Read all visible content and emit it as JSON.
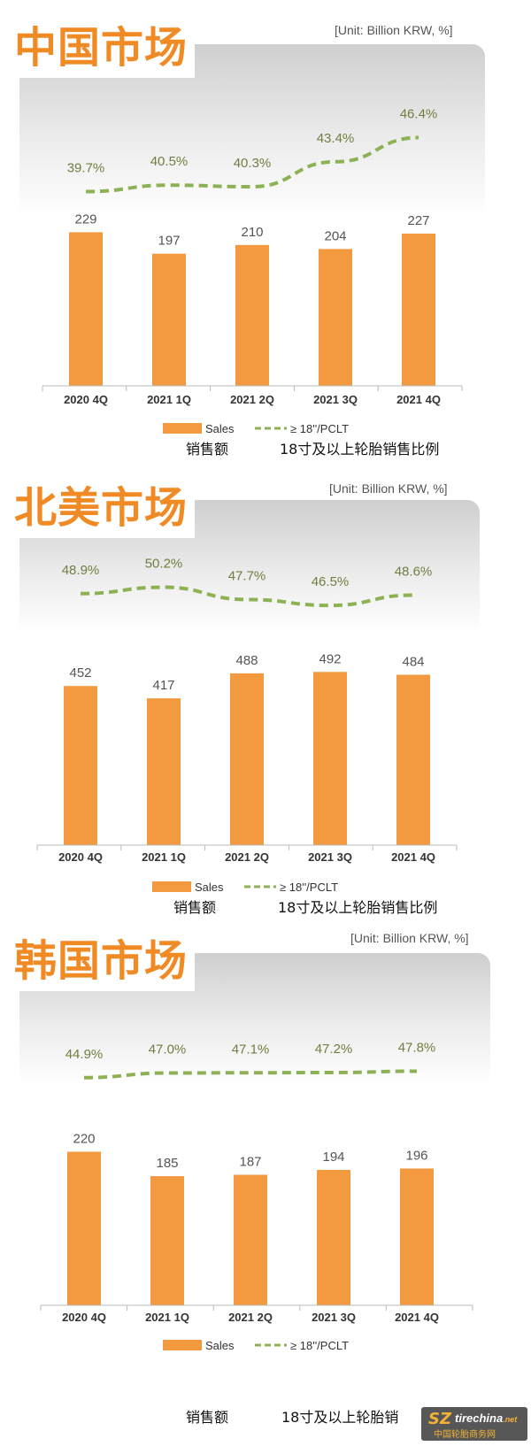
{
  "colors": {
    "accent": "#f08a24",
    "bar": "#f39a41",
    "ratio_line": "#8db253",
    "title": "#f08a24"
  },
  "panels": [
    {
      "title": "中国市场",
      "unit": "[Unit: Billion KRW, %]",
      "legend": {
        "sales": "Sales",
        "ratio": "≥ 18''/PCLT",
        "sales_cn": "销售额",
        "ratio_cn": "18寸及以上轮胎销售比例"
      }
    },
    {
      "title": "北美市场",
      "unit": "[Unit: Billion KRW, %]",
      "legend": {
        "sales": "Sales",
        "ratio": "≥ 18''/PCLT",
        "sales_cn": "销售额",
        "ratio_cn": "18寸及以上轮胎销售比例"
      }
    },
    {
      "title": "韩国市场",
      "unit": "[Unit: Billion KRW, %]",
      "legend": {
        "sales": "Sales",
        "ratio": "≥ 18''/PCLT",
        "sales_cn": "销售额",
        "ratio_cn": "18寸及以上轮胎销"
      }
    }
  ],
  "watermark": {
    "logo": "SZ",
    "site": "tirechina",
    "suffix": ".net",
    "cn": "中国轮胎商务网"
  },
  "chart_data": [
    {
      "type": "bar",
      "categories": [
        "2020 4Q",
        "2021 1Q",
        "2021 2Q",
        "2021 3Q",
        "2021 4Q"
      ],
      "series": [
        {
          "name": "Sales",
          "type": "bar",
          "values": [
            229,
            197,
            210,
            204,
            227
          ]
        },
        {
          "name": "≥ 18''/PCLT",
          "type": "line",
          "values": [
            39.7,
            40.5,
            40.3,
            43.4,
            46.4
          ],
          "labels": [
            "39.7%",
            "40.5%",
            "40.3%",
            "43.4%",
            "46.4%"
          ]
        }
      ],
      "ylim": [
        0,
        270
      ],
      "line_ylim": [
        38,
        47
      ],
      "legend": "bottom-center"
    },
    {
      "type": "bar",
      "categories": [
        "2020 4Q",
        "2021 1Q",
        "2021 2Q",
        "2021 3Q",
        "2021 4Q"
      ],
      "series": [
        {
          "name": "Sales",
          "type": "bar",
          "values": [
            452,
            417,
            488,
            492,
            484
          ]
        },
        {
          "name": "≥ 18''/PCLT",
          "type": "line",
          "values": [
            48.9,
            50.2,
            47.7,
            46.5,
            48.6
          ],
          "labels": [
            "48.9%",
            "50.2%",
            "47.7%",
            "46.5%",
            "48.6%"
          ]
        }
      ],
      "ylim": [
        0,
        570
      ],
      "line_ylim": [
        44,
        53
      ],
      "legend": "bottom-center"
    },
    {
      "type": "bar",
      "categories": [
        "2020 4Q",
        "2021 1Q",
        "2021 2Q",
        "2021 3Q",
        "2021 4Q"
      ],
      "series": [
        {
          "name": "Sales",
          "type": "bar",
          "values": [
            220,
            185,
            187,
            194,
            196
          ]
        },
        {
          "name": "≥ 18''/PCLT",
          "type": "line",
          "values": [
            44.9,
            47.0,
            47.1,
            47.2,
            47.8
          ],
          "labels": [
            "44.9%",
            "47.0%",
            "47.1%",
            "47.2%",
            "47.8%"
          ]
        }
      ],
      "ylim": [
        0,
        258
      ],
      "line_ylim": [
        40,
        52
      ],
      "legend": "bottom-center"
    }
  ]
}
